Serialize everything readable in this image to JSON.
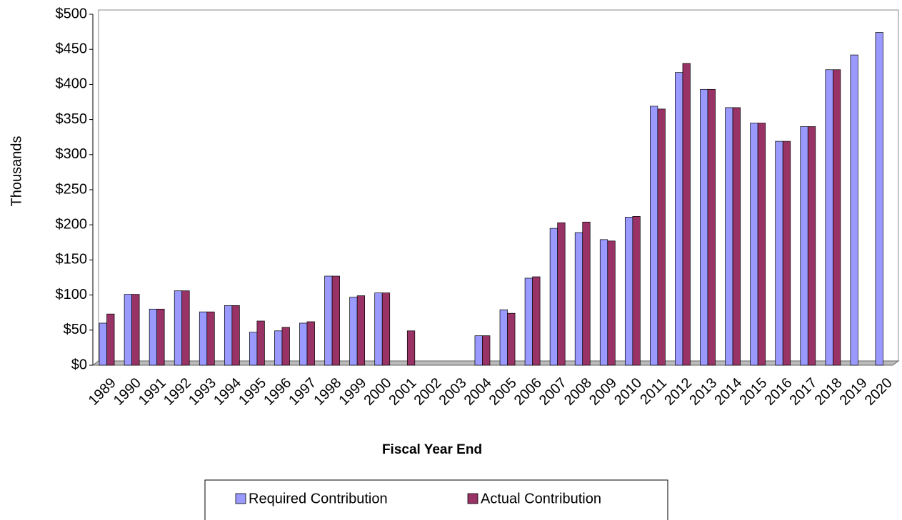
{
  "chart_data": {
    "type": "bar",
    "y_axis_label": "Thousands",
    "x_axis_label": "Fiscal Year End",
    "categories": [
      "1989",
      "1990",
      "1991",
      "1992",
      "1993",
      "1994",
      "1995",
      "1996",
      "1997",
      "1998",
      "1999",
      "2000",
      "2001",
      "2002",
      "2003",
      "2004",
      "2005",
      "2006",
      "2007",
      "2008",
      "2009",
      "2010",
      "2011",
      "2012",
      "2013",
      "2014",
      "2015",
      "2016",
      "2017",
      "2018",
      "2019",
      "2020"
    ],
    "series": [
      {
        "name": "Required Contribution",
        "color": "#9999ff",
        "values": [
          60,
          101,
          80,
          106,
          76,
          85,
          47,
          49,
          60,
          127,
          97,
          103,
          0,
          0,
          0,
          42,
          79,
          124,
          195,
          189,
          179,
          211,
          369,
          417,
          393,
          367,
          345,
          319,
          340,
          421,
          442,
          474
        ]
      },
      {
        "name": "Actual Contribution",
        "color": "#993366",
        "values": [
          73,
          101,
          80,
          106,
          76,
          85,
          63,
          54,
          62,
          127,
          99,
          103,
          49,
          0,
          0,
          42,
          74,
          126,
          203,
          204,
          177,
          212,
          365,
          430,
          393,
          367,
          345,
          319,
          340,
          421,
          0,
          0
        ]
      }
    ],
    "ylim": [
      0,
      500
    ],
    "yticks": [
      {
        "value": 0,
        "label": "$0"
      },
      {
        "value": 50,
        "label": "$50"
      },
      {
        "value": 100,
        "label": "$100"
      },
      {
        "value": 150,
        "label": "$150"
      },
      {
        "value": 200,
        "label": "$200"
      },
      {
        "value": 250,
        "label": "$250"
      },
      {
        "value": 300,
        "label": "$300"
      },
      {
        "value": 350,
        "label": "$350"
      },
      {
        "value": 400,
        "label": "$400"
      },
      {
        "value": 450,
        "label": "$450"
      },
      {
        "value": 500,
        "label": "$500"
      }
    ],
    "grid": false,
    "legend": "bottom"
  }
}
